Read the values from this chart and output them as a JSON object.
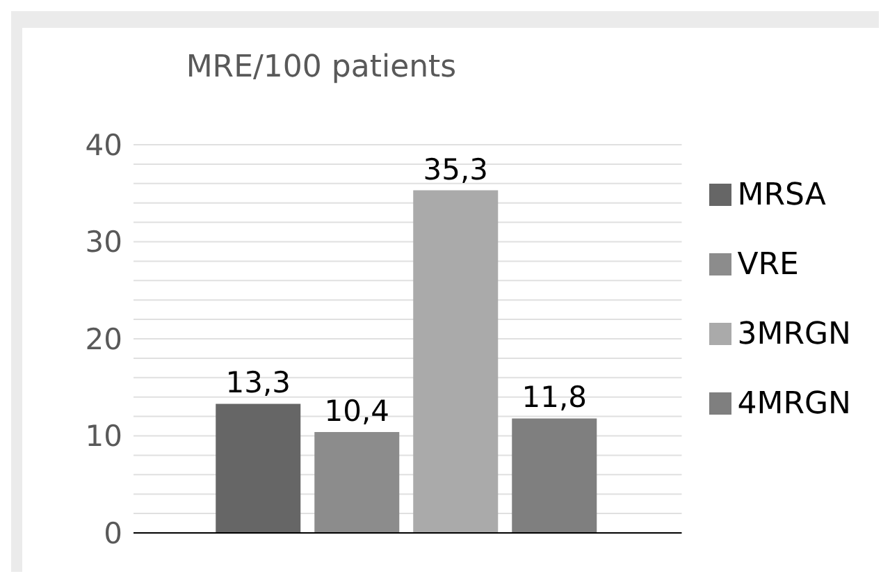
{
  "chart_data": {
    "type": "bar",
    "title": "MRE/100 patients",
    "categories": [
      null
    ],
    "series": [
      {
        "name": "MRSA",
        "color": "#666666",
        "values": [
          13.3
        ],
        "value_labels": [
          "13,3"
        ]
      },
      {
        "name": "VRE",
        "color": "#8c8c8c",
        "values": [
          10.4
        ],
        "value_labels": [
          "10,4"
        ]
      },
      {
        "name": "3MRGN",
        "color": "#aaaaaa",
        "values": [
          35.3
        ],
        "value_labels": [
          "35,3"
        ]
      },
      {
        "name": "4MRGN",
        "color": "#7f7f7f",
        "values": [
          11.8
        ],
        "value_labels": [
          "11,8"
        ]
      }
    ],
    "ylim": [
      0,
      40
    ],
    "yticks": [
      0,
      {
        "value": 2,
        "label": null
      },
      {
        "value": 4,
        "label": null
      },
      {
        "value": 6,
        "label": null
      },
      {
        "value": 8,
        "label": null
      },
      10,
      {
        "value": 12,
        "label": null
      },
      {
        "value": 14,
        "label": null
      },
      {
        "value": 16,
        "label": null
      },
      {
        "value": 18,
        "label": null
      },
      20,
      {
        "value": 22,
        "label": null
      },
      {
        "value": 24,
        "label": null
      },
      {
        "value": 26,
        "label": null
      },
      {
        "value": 28,
        "label": null
      },
      30,
      {
        "value": 32,
        "label": null
      },
      {
        "value": 34,
        "label": null
      },
      {
        "value": 36,
        "label": null
      },
      {
        "value": 38,
        "label": null
      },
      40
    ],
    "grid": "y",
    "legend": "right"
  }
}
